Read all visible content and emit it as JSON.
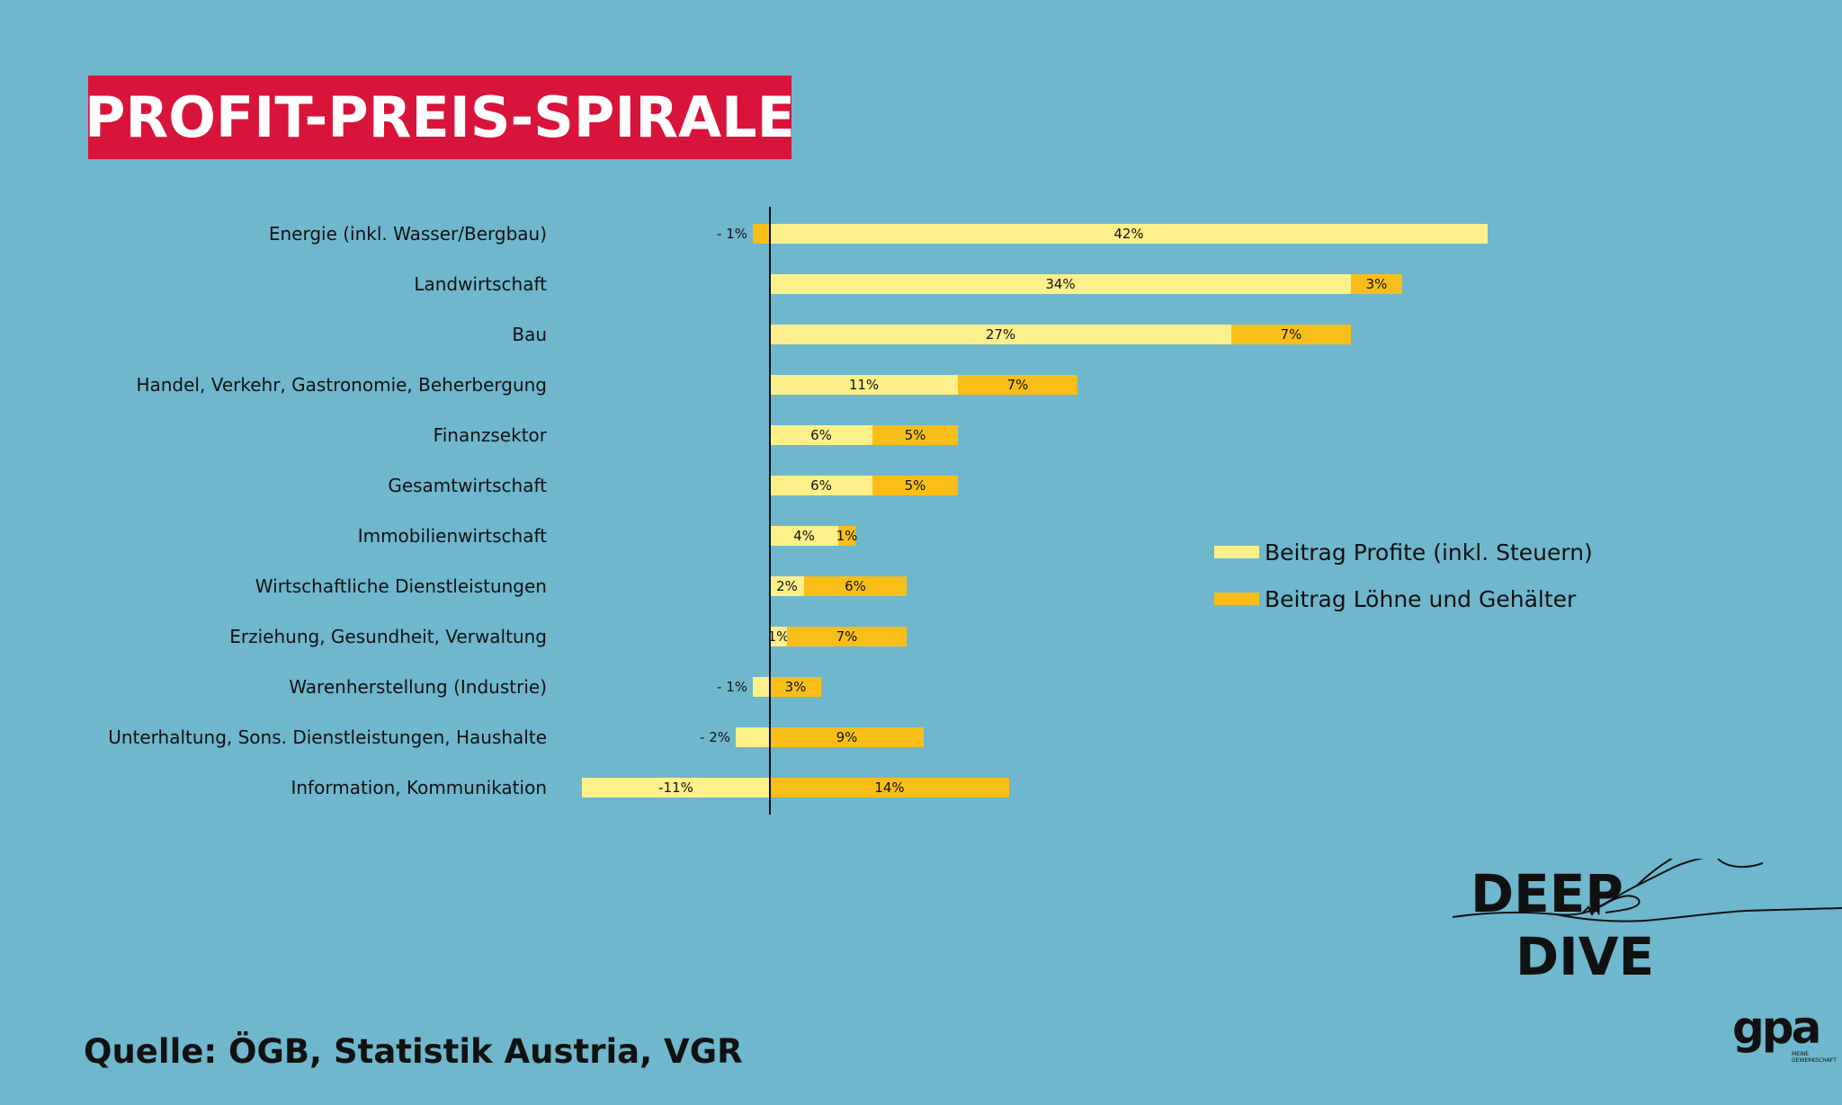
{
  "title": "PROFIT-PREIS-SPIRALE",
  "source": "Quelle: ÖGB, Statistik Austria, VGR",
  "brand": {
    "deep": "DEEP",
    "dive": "DIVE",
    "logo": "gpa",
    "logo_sub": "MEINE GEWERKSCHAFT"
  },
  "colors": {
    "background": "#6fb7cc",
    "title_bg": "#d9143a",
    "profits": "#fdf08a",
    "wages": "#f9bf18"
  },
  "chart_data": {
    "type": "bar",
    "orientation": "horizontal",
    "stacked": true,
    "categories": [
      "Energie (inkl. Wasser/Bergbau)",
      "Landwirtschaft",
      "Bau",
      "Handel, Verkehr, Gastronomie, Beherbergung",
      "Finanzsektor",
      "Gesamtwirtschaft",
      "Immobilienwirtschaft",
      "Wirtschaftliche Dienstleistungen",
      "Erziehung, Gesundheit, Verwaltung",
      "Warenherstellung (Industrie)",
      "Unterhaltung, Sons. Dienstleistungen, Haushalte",
      "Information, Kommunikation"
    ],
    "series": [
      {
        "name": "Beitrag Profite (inkl. Steuern)",
        "values": [
          42,
          34,
          27,
          11,
          6,
          6,
          4,
          2,
          1,
          -1,
          -2,
          -11
        ],
        "labels": [
          "42%",
          "34%",
          "27%",
          "11%",
          "6%",
          "6%",
          "4%",
          "2%",
          "1%",
          "- 1%",
          "- 2%",
          "-11%"
        ]
      },
      {
        "name": "Beitrag Löhne und Gehälter",
        "values": [
          -1,
          3,
          7,
          7,
          5,
          5,
          1,
          6,
          7,
          3,
          9,
          14
        ],
        "labels": [
          "- 1%",
          "3%",
          "7%",
          "7%",
          "5%",
          "5%",
          "1%",
          "6%",
          "7%",
          "3%",
          "9%",
          "14%"
        ]
      }
    ],
    "legend_position": "right",
    "grid": false
  }
}
